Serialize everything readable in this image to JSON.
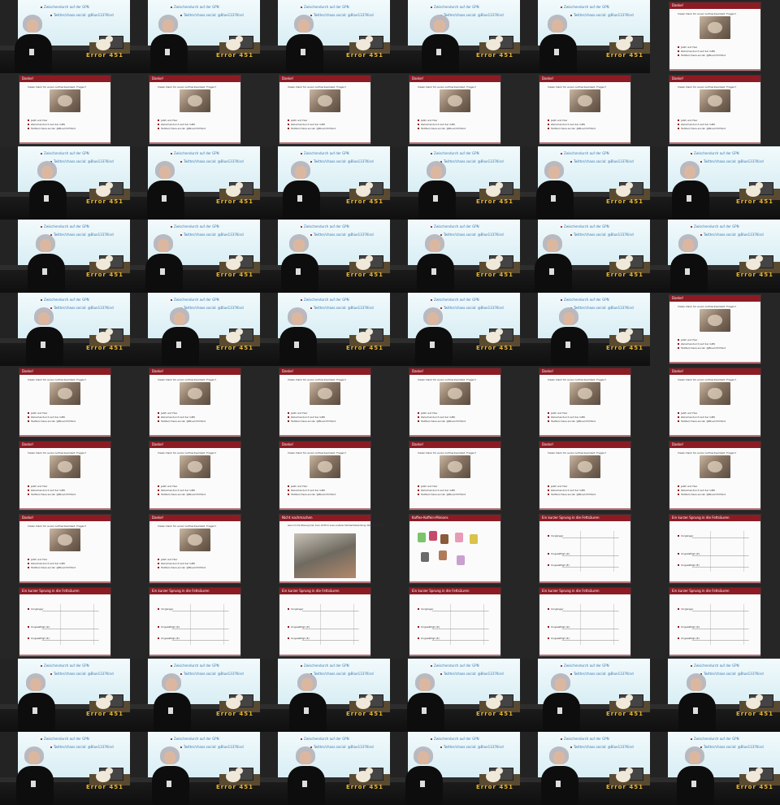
{
  "grid": {
    "columns": 6,
    "rows": 11
  },
  "slide_danke": {
    "title": "Danke!",
    "line": "Vielen Dank für euren Aufmerksamkeit. Fragen?",
    "bullets": [
      "Jetzt und Hier",
      "Zwischendurch auf der GPN",
      "Twitter/chaos.social: @Blue1337Kind"
    ]
  },
  "slide_molecules": {
    "title": "Ein kurzer Sprung in die Fettsäuren",
    "labels": [
      "Vorgänger",
      "Ungesättigt (Z)",
      "Ungesättigt (E)"
    ]
  },
  "slide_video": {
    "title": "Nicht nachmachen",
    "line": "wenn ihr die Wissung löst, dann dürft ihr einen anderen Wirrwarrbehandlung, Wasserzusammen"
  },
  "slide_figures": {
    "title": "Kaffee-Koffein-Minions"
  },
  "photo_text": {
    "line1": "Zwischendurch auf der GPN",
    "line2": "Twitter/chaos.social: @Blue1337Kind",
    "sign": "Error 451"
  },
  "cells": [
    "photo",
    "photo",
    "photo",
    "photo",
    "photo",
    "danke",
    "danke",
    "danke",
    "danke",
    "danke",
    "danke",
    "danke",
    "photo",
    "photo",
    "photo",
    "photo",
    "photo",
    "photo",
    "photo",
    "photo",
    "photo",
    "photo",
    "photo",
    "photo",
    "photo",
    "photo",
    "photo",
    "photo",
    "photo",
    "danke",
    "danke",
    "danke",
    "danke",
    "danke",
    "danke",
    "danke",
    "danke",
    "danke",
    "danke",
    "danke",
    "danke",
    "danke",
    "danke",
    "danke",
    "video",
    "figures",
    "molecules",
    "molecules",
    "molecules",
    "molecules",
    "molecules",
    "molecules",
    "molecules",
    "molecules",
    "photo",
    "photo",
    "photo",
    "photo",
    "photo",
    "photo",
    "photo",
    "photo",
    "photo",
    "photo",
    "photo",
    "photo"
  ]
}
